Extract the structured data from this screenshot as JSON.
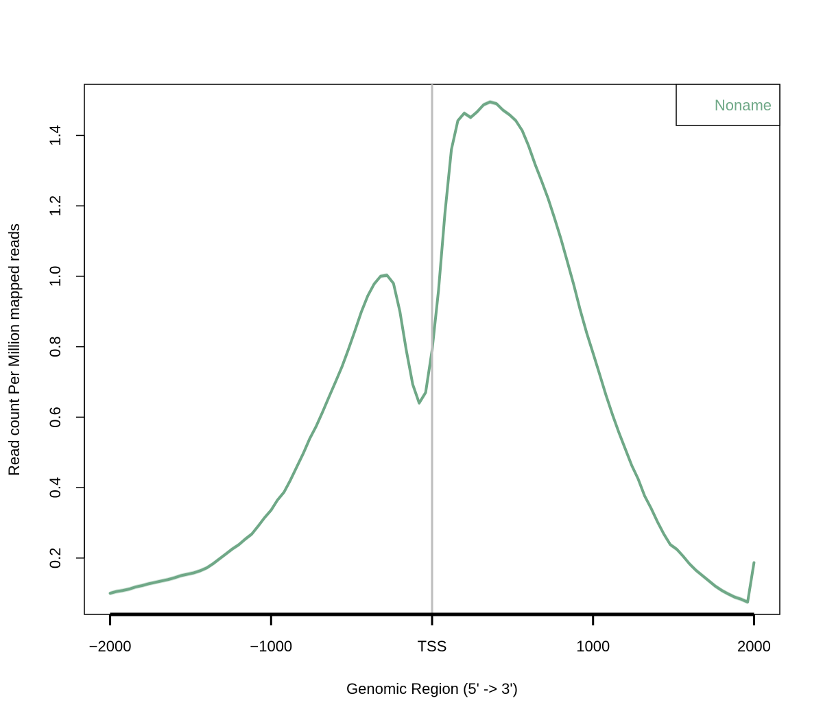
{
  "chart_data": {
    "type": "line",
    "title": "",
    "xlabel": "Genomic Region (5' -> 3')",
    "ylabel": "Read count Per Million mapped reads",
    "xlim": [
      -2160,
      2160
    ],
    "ylim": [
      0.04,
      1.545
    ],
    "x_ticks": [
      {
        "value": -2000,
        "label": "−2000"
      },
      {
        "value": -1000,
        "label": "−1000"
      },
      {
        "value": 0,
        "label": "TSS"
      },
      {
        "value": 1000,
        "label": "1000"
      },
      {
        "value": 2000,
        "label": "2000"
      }
    ],
    "y_ticks": [
      {
        "value": 0.2,
        "label": "0.2"
      },
      {
        "value": 0.4,
        "label": "0.4"
      },
      {
        "value": 0.6,
        "label": "0.6"
      },
      {
        "value": 0.8,
        "label": "0.8"
      },
      {
        "value": 1.0,
        "label": "1.0"
      },
      {
        "value": 1.2,
        "label": "1.2"
      },
      {
        "value": 1.4,
        "label": "1.4"
      }
    ],
    "vline": {
      "x": 0,
      "color": "#bebebe"
    },
    "grid": false,
    "legend": {
      "placement": "top-right",
      "entries": [
        "Noname"
      ]
    },
    "series": [
      {
        "name": "Noname",
        "color": "#6fa887",
        "band_color": "#d4e5da",
        "band_halfwidth": 0.006,
        "x": [
          -2000,
          -1960,
          -1920,
          -1880,
          -1840,
          -1800,
          -1760,
          -1720,
          -1680,
          -1640,
          -1600,
          -1560,
          -1520,
          -1480,
          -1440,
          -1400,
          -1360,
          -1320,
          -1280,
          -1240,
          -1200,
          -1160,
          -1120,
          -1080,
          -1040,
          -1000,
          -960,
          -920,
          -880,
          -840,
          -800,
          -760,
          -720,
          -680,
          -640,
          -600,
          -560,
          -520,
          -480,
          -440,
          -400,
          -360,
          -320,
          -280,
          -240,
          -200,
          -160,
          -120,
          -80,
          -40,
          0,
          40,
          80,
          120,
          160,
          200,
          240,
          280,
          320,
          360,
          400,
          440,
          480,
          520,
          560,
          600,
          640,
          680,
          720,
          760,
          800,
          840,
          880,
          920,
          960,
          1000,
          1040,
          1080,
          1120,
          1160,
          1200,
          1240,
          1280,
          1320,
          1360,
          1400,
          1440,
          1480,
          1520,
          1560,
          1600,
          1640,
          1680,
          1720,
          1760,
          1800,
          1840,
          1880,
          1920,
          1960,
          2000
        ],
        "y": [
          0.1,
          0.105,
          0.108,
          0.112,
          0.118,
          0.122,
          0.127,
          0.131,
          0.135,
          0.139,
          0.144,
          0.15,
          0.154,
          0.158,
          0.164,
          0.172,
          0.184,
          0.198,
          0.212,
          0.226,
          0.238,
          0.254,
          0.268,
          0.291,
          0.315,
          0.336,
          0.365,
          0.387,
          0.421,
          0.459,
          0.497,
          0.539,
          0.574,
          0.615,
          0.658,
          0.7,
          0.743,
          0.792,
          0.844,
          0.898,
          0.944,
          0.978,
          1.0,
          1.003,
          0.98,
          0.9,
          0.79,
          0.693,
          0.64,
          0.67,
          0.79,
          0.96,
          1.18,
          1.36,
          1.442,
          1.463,
          1.451,
          1.467,
          1.487,
          1.495,
          1.49,
          1.472,
          1.459,
          1.442,
          1.414,
          1.37,
          1.318,
          1.271,
          1.222,
          1.166,
          1.107,
          1.042,
          0.976,
          0.905,
          0.84,
          0.782,
          0.723,
          0.663,
          0.608,
          0.557,
          0.51,
          0.463,
          0.425,
          0.377,
          0.342,
          0.303,
          0.268,
          0.238,
          0.225,
          0.205,
          0.183,
          0.165,
          0.15,
          0.135,
          0.12,
          0.108,
          0.098,
          0.089,
          0.083,
          0.075,
          0.187
        ]
      }
    ]
  }
}
